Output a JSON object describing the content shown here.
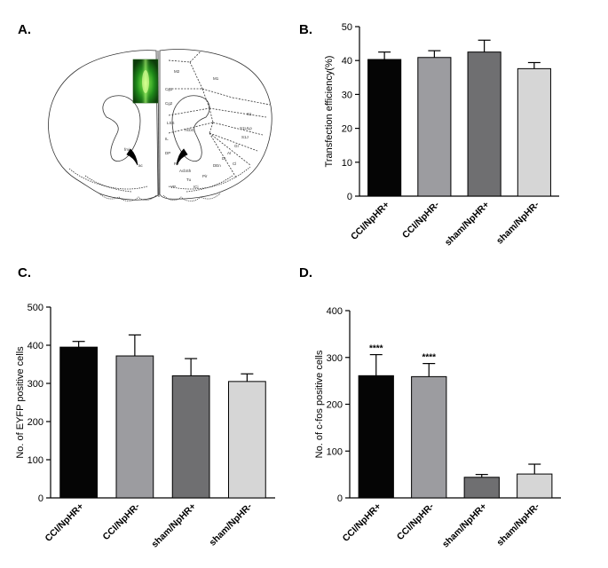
{
  "panel_a": {
    "letter": "A.",
    "region_labels": [
      "M2",
      "M1",
      "Cg1",
      "S1",
      "Cg2",
      "S1J",
      "IL",
      "DP",
      "AI",
      "GI",
      "DI",
      "S1ULp",
      "DEn",
      "Pir",
      "VP",
      "AcbSh",
      "AcbC",
      "LSS",
      "Tu",
      "Pe",
      "ICj",
      "fmi",
      "ac",
      "Cl"
    ]
  },
  "chart_data": [
    {
      "panel": "B.",
      "type": "bar",
      "categories": [
        "CCI/NpHR+",
        "CCI/NpHR-",
        "sham/NpHR+",
        "sham/NpHR-"
      ],
      "values": [
        40.3,
        40.9,
        42.5,
        37.6
      ],
      "errors": [
        2.2,
        2.0,
        3.5,
        1.8
      ],
      "significance": [
        "",
        "",
        "",
        ""
      ],
      "bar_colors": [
        "#050505",
        "#9c9ca0",
        "#6f6f71",
        "#d6d6d6"
      ],
      "ylabel": "Transfection efficiency(%)",
      "xlabel": "",
      "ylim": [
        0,
        50
      ],
      "yticks": [
        "0",
        "10",
        "20",
        "30",
        "40",
        "50"
      ]
    },
    {
      "panel": "C.",
      "type": "bar",
      "categories": [
        "CCI/NpHR+",
        "CCI/NpHR-",
        "sham/NpHR+",
        "sham/NpHR-"
      ],
      "values": [
        395,
        372,
        320,
        305
      ],
      "errors": [
        15,
        55,
        45,
        20
      ],
      "significance": [
        "",
        "",
        "",
        ""
      ],
      "bar_colors": [
        "#050505",
        "#9c9ca0",
        "#6f6f71",
        "#d6d6d6"
      ],
      "ylabel": "No. of EYFP positive cells",
      "xlabel": "",
      "ylim": [
        0,
        500
      ],
      "yticks": [
        "0",
        "100",
        "200",
        "300",
        "400",
        "500"
      ]
    },
    {
      "panel": "D.",
      "type": "bar",
      "categories": [
        "CCI/NpHR+",
        "CCI/NpHR-",
        "sham/NpHR+",
        "sham/NpHR-"
      ],
      "values": [
        261,
        259,
        44,
        51
      ],
      "errors": [
        45,
        28,
        6,
        21
      ],
      "significance": [
        "****",
        "****",
        "",
        ""
      ],
      "bar_colors": [
        "#050505",
        "#9c9ca0",
        "#6f6f71",
        "#d6d6d6"
      ],
      "ylabel": "No. of c-fos positive cells",
      "xlabel": "",
      "ylim": [
        0,
        400
      ],
      "yticks": [
        "0",
        "100",
        "200",
        "300",
        "400"
      ]
    }
  ]
}
